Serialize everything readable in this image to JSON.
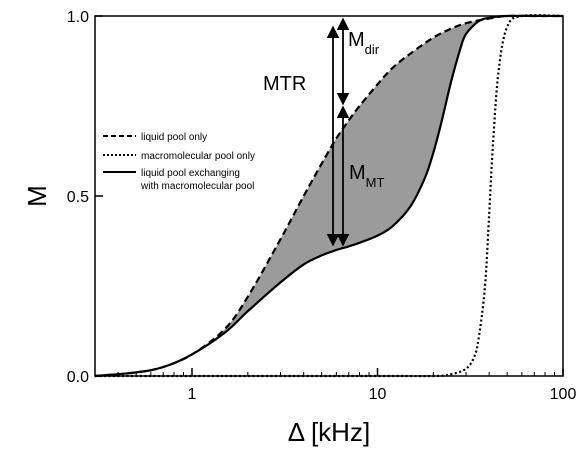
{
  "chart_data": {
    "type": "line",
    "xlabel": "Δ [kHz]",
    "ylabel": "M",
    "xscale": "log",
    "xlim": [
      0.3,
      100
    ],
    "ylim": [
      0,
      1
    ],
    "x_ticks": [
      {
        "value": 1,
        "label": "1"
      },
      {
        "value": 10,
        "label": "10"
      },
      {
        "value": 100,
        "label": "100"
      }
    ],
    "y_ticks": [
      {
        "value": 0,
        "label": "0.0"
      },
      {
        "value": 0.5,
        "label": "0.5"
      },
      {
        "value": 1,
        "label": "1.0"
      }
    ],
    "grid": false,
    "legend_position": "left-middle",
    "shaded_region": {
      "between": [
        "liquid pool only",
        "liquid pool exchanging with macromolecular pool"
      ],
      "color": "#9b9b9b"
    },
    "series": [
      {
        "name": "liquid pool only",
        "line_style": "dashed",
        "x": [
          0.3,
          0.5,
          0.7,
          1,
          1.5,
          2,
          3,
          4,
          5,
          6,
          7,
          8,
          10,
          12,
          15,
          20,
          25,
          30,
          40,
          50,
          70,
          100
        ],
        "y": [
          0.0,
          0.01,
          0.025,
          0.06,
          0.13,
          0.22,
          0.38,
          0.5,
          0.59,
          0.66,
          0.71,
          0.75,
          0.81,
          0.855,
          0.895,
          0.94,
          0.965,
          0.98,
          0.993,
          1.0,
          1.0,
          1.0
        ]
      },
      {
        "name": "macromolecular pool only",
        "line_style": "dotted",
        "x": [
          0.3,
          10,
          20,
          25,
          30,
          33,
          35,
          38,
          40,
          42,
          45,
          50,
          60,
          100
        ],
        "y": [
          0.0,
          0.0,
          0.0,
          0.005,
          0.02,
          0.05,
          0.1,
          0.25,
          0.45,
          0.65,
          0.85,
          0.97,
          1.0,
          1.0
        ]
      },
      {
        "name": "liquid pool exchanging with macromolecular pool",
        "line_style": "solid",
        "x": [
          0.3,
          0.5,
          0.7,
          1,
          1.5,
          2,
          3,
          4,
          5,
          6,
          7,
          8,
          10,
          12,
          15,
          18,
          20,
          22,
          25,
          28,
          30,
          35,
          40,
          50,
          100
        ],
        "y": [
          0.0,
          0.01,
          0.025,
          0.06,
          0.12,
          0.18,
          0.26,
          0.31,
          0.335,
          0.35,
          0.36,
          0.37,
          0.39,
          0.415,
          0.47,
          0.55,
          0.62,
          0.7,
          0.82,
          0.91,
          0.95,
          0.985,
          0.995,
          1.0,
          1.0
        ]
      }
    ],
    "annotations": [
      {
        "text": "MTR"
      },
      {
        "text": "M",
        "subscript": "dir"
      },
      {
        "text": "M",
        "subscript": "MT"
      }
    ]
  }
}
